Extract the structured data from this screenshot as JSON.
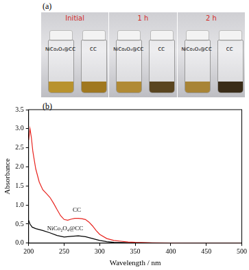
{
  "photo": {
    "label": "(a)",
    "panels": [
      {
        "title": "Initial",
        "vials": [
          "NiCo₂O₄@CC",
          "CC"
        ]
      },
      {
        "title": "1 h",
        "vials": [
          "NiCo₂O₄@CC",
          "CC"
        ]
      },
      {
        "title": "2 h",
        "vials": [
          "NiCo₂O₄@CC",
          "CC"
        ]
      }
    ]
  },
  "chart_data": {
    "type": "line",
    "title": "(b)",
    "x_label": "Wavelength / nm",
    "y_label": "Absorbance",
    "xlim": [
      200,
      500
    ],
    "xticks": [
      200,
      250,
      300,
      350,
      400,
      450,
      500
    ],
    "ylim": [
      0,
      3.5
    ],
    "yticks": [
      {
        "value": 0,
        "label": "0.0"
      },
      {
        "value": 0.5,
        "label": "0.5"
      },
      {
        "value": 1,
        "label": "1.0"
      },
      {
        "value": 1.5,
        "label": "1.5"
      },
      {
        "value": 2,
        "label": "2.0"
      },
      {
        "value": 2.5,
        "label": "2.5"
      },
      {
        "value": 3,
        "label": "3.0"
      },
      {
        "value": 3.5,
        "label": "3.5"
      }
    ],
    "grid": false,
    "series": [
      {
        "name": "CC",
        "color": "#e8231e",
        "x": [
          200,
          202,
          204,
          206,
          210,
          215,
          220,
          225,
          230,
          235,
          240,
          245,
          250,
          255,
          260,
          265,
          270,
          275,
          280,
          285,
          290,
          295,
          300,
          310,
          320,
          330,
          340,
          350,
          375,
          400,
          450,
          500
        ],
        "values": [
          2.7,
          3.0,
          2.75,
          2.4,
          1.95,
          1.6,
          1.4,
          1.3,
          1.2,
          1.05,
          0.88,
          0.72,
          0.62,
          0.6,
          0.63,
          0.65,
          0.65,
          0.64,
          0.62,
          0.55,
          0.45,
          0.33,
          0.23,
          0.12,
          0.07,
          0.05,
          0.03,
          0.02,
          0.01,
          0.005,
          0,
          0
        ]
      },
      {
        "name": "NiCo₂O₄@CC",
        "color": "#000000",
        "x": [
          200,
          202,
          205,
          210,
          220,
          230,
          240,
          250,
          255,
          260,
          270,
          280,
          290,
          300,
          310,
          320,
          350,
          400,
          500
        ],
        "values": [
          0.6,
          0.5,
          0.42,
          0.38,
          0.33,
          0.27,
          0.2,
          0.16,
          0.17,
          0.18,
          0.19,
          0.17,
          0.12,
          0.07,
          0.04,
          0.02,
          0.01,
          0,
          0
        ]
      }
    ],
    "annotations": [
      {
        "text": "CC",
        "x": 262,
        "y": 0.78
      },
      {
        "text": "NiCo₂O₄@CC",
        "x": 226,
        "y": 0.3
      }
    ]
  }
}
